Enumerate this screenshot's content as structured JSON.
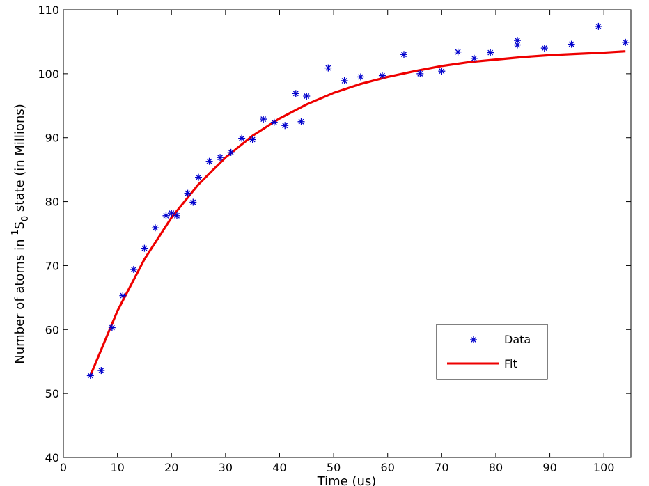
{
  "chart_data": {
    "type": "scatter",
    "xlabel": "Time (us)",
    "ylabel_parts": {
      "before": "Number of atoms in ",
      "superscript": "1",
      "main": "S",
      "subscript": "0",
      "after": " state (in Millions)"
    },
    "xlim": [
      0,
      105
    ],
    "ylim": [
      40,
      110
    ],
    "xticks": [
      0,
      10,
      20,
      30,
      40,
      50,
      60,
      70,
      80,
      90,
      100
    ],
    "yticks": [
      40,
      50,
      60,
      70,
      80,
      90,
      100,
      110
    ],
    "grid": false,
    "legend_position": "bottom-right",
    "series": [
      {
        "name": "Data",
        "kind": "markers",
        "marker": "asterisk",
        "color": "#0000cc",
        "x": [
          5,
          7,
          9,
          11,
          13,
          15,
          17,
          19,
          20,
          21,
          23,
          24,
          25,
          27,
          29,
          31,
          33,
          35,
          37,
          39,
          41,
          43,
          44,
          45,
          49,
          52,
          55,
          59,
          63,
          66,
          70,
          73,
          76,
          79,
          84,
          84,
          89,
          94,
          99,
          104
        ],
        "y": [
          52.8,
          53.6,
          60.3,
          65.3,
          69.4,
          72.7,
          75.9,
          77.8,
          78.2,
          77.8,
          81.3,
          79.9,
          83.8,
          86.3,
          86.9,
          87.7,
          89.9,
          89.7,
          92.9,
          92.4,
          91.9,
          96.9,
          92.5,
          96.5,
          100.9,
          98.9,
          99.5,
          99.7,
          103.0,
          100.0,
          100.4,
          103.4,
          102.4,
          103.3,
          105.2,
          104.5,
          104.0,
          104.6,
          107.4,
          104.9
        ]
      },
      {
        "name": "Fit",
        "kind": "line",
        "color": "#ee0000",
        "x": [
          5,
          10,
          15,
          20,
          25,
          30,
          35,
          40,
          45,
          50,
          55,
          60,
          65,
          70,
          75,
          80,
          85,
          90,
          95,
          100,
          104
        ],
        "y": [
          52.8,
          62.9,
          71.0,
          77.5,
          82.7,
          86.9,
          90.3,
          93.0,
          95.2,
          97.0,
          98.4,
          99.5,
          100.4,
          101.2,
          101.8,
          102.2,
          102.6,
          102.9,
          103.1,
          103.3,
          103.5
        ]
      }
    ]
  }
}
